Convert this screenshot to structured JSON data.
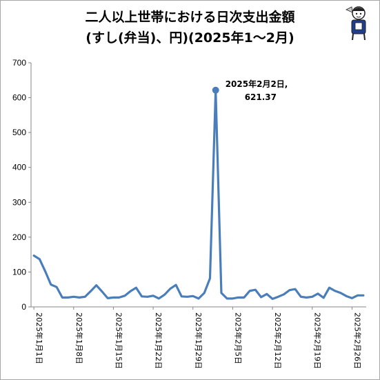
{
  "title": {
    "line1": "二人以上世帯における日次支出金額",
    "line2": "(すし(弁当)、円)(2025年1〜2月)"
  },
  "chart_data": {
    "type": "line",
    "title": "二人以上世帯における日次支出金額 (すし(弁当)、円)(2025年1〜2月)",
    "xlabel": "",
    "ylabel": "",
    "ylim": [
      0,
      700
    ],
    "yticks": [
      0,
      100,
      200,
      300,
      400,
      500,
      600,
      700
    ],
    "grid": false,
    "legend": "none",
    "line_color": "#4a7ebb",
    "x": [
      "2025-01-01",
      "2025-01-02",
      "2025-01-03",
      "2025-01-04",
      "2025-01-05",
      "2025-01-06",
      "2025-01-07",
      "2025-01-08",
      "2025-01-09",
      "2025-01-10",
      "2025-01-11",
      "2025-01-12",
      "2025-01-13",
      "2025-01-14",
      "2025-01-15",
      "2025-01-16",
      "2025-01-17",
      "2025-01-18",
      "2025-01-19",
      "2025-01-20",
      "2025-01-21",
      "2025-01-22",
      "2025-01-23",
      "2025-01-24",
      "2025-01-25",
      "2025-01-26",
      "2025-01-27",
      "2025-01-28",
      "2025-01-29",
      "2025-01-30",
      "2025-01-31",
      "2025-02-01",
      "2025-02-02",
      "2025-02-03",
      "2025-02-04",
      "2025-02-05",
      "2025-02-06",
      "2025-02-07",
      "2025-02-08",
      "2025-02-09",
      "2025-02-10",
      "2025-02-11",
      "2025-02-12",
      "2025-02-13",
      "2025-02-14",
      "2025-02-15",
      "2025-02-16",
      "2025-02-17",
      "2025-02-18",
      "2025-02-19",
      "2025-02-20",
      "2025-02-21",
      "2025-02-22",
      "2025-02-23",
      "2025-02-24",
      "2025-02-25",
      "2025-02-26",
      "2025-02-27",
      "2025-02-28"
    ],
    "values": [
      147,
      137,
      102,
      64,
      57,
      27,
      27,
      29,
      27,
      29,
      45,
      62,
      44,
      25,
      27,
      27,
      32,
      45,
      55,
      30,
      29,
      32,
      24,
      35,
      52,
      63,
      30,
      29,
      31,
      24,
      40,
      82,
      621.37,
      40,
      24,
      24,
      27,
      27,
      46,
      49,
      28,
      37,
      23,
      29,
      36,
      48,
      51,
      29,
      27,
      29,
      38,
      26,
      55,
      46,
      40,
      31,
      25,
      33,
      33
    ],
    "xtick_labels": [
      "2025年1月1日",
      "2025年1月8日",
      "2025年1月15日",
      "2025年1月22日",
      "2025年1月29日",
      "2025年2月5日",
      "2025年2月12日",
      "2025年2月19日",
      "2025年2月26日"
    ],
    "xtick_index": [
      0,
      7,
      14,
      21,
      28,
      35,
      42,
      49,
      56
    ],
    "annotation": {
      "index": 32,
      "line1": "2025年2月2日,",
      "line2": "621.37"
    }
  }
}
